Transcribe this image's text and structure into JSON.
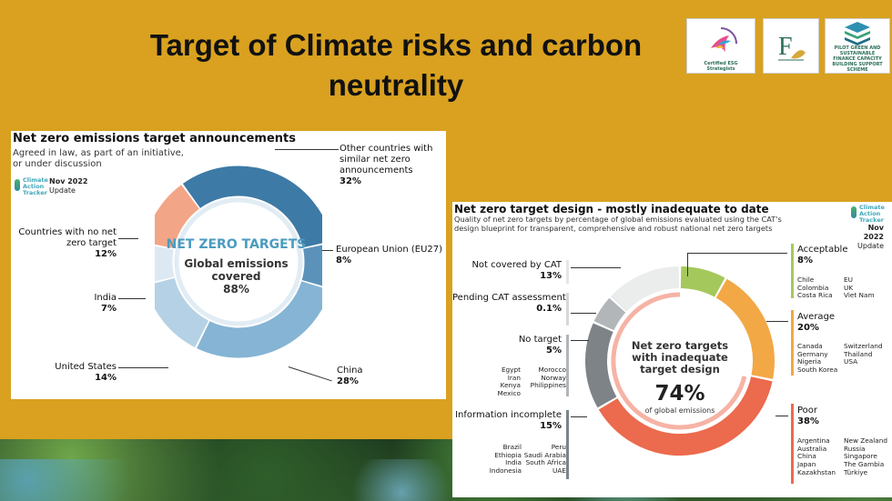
{
  "slide_title": "Target of Climate risks and carbon neutrality",
  "logos": [
    "Certified ESG Strategists",
    "F",
    "PILOT GREEN AND SUSTAINABLE FINANCE CAPACITY BUILDING SUPPORT SCHEME"
  ],
  "colors": {
    "background": "#d9a11f",
    "blue_dark": "#3d7aa6",
    "blue_mid": "#7fb1d3",
    "blue_light": "#c6dcea",
    "salmon": "#f3a587",
    "green": "#a5c85c",
    "orange": "#f2a844",
    "red": "#ec6a4d",
    "gray": "#8a8f93",
    "gray_light": "#e9eaea"
  },
  "panel1": {
    "title": "Net zero emissions target announcements",
    "subtitle": "Agreed in law, as part of an initiative, or under discussion",
    "badge_logo": "Climate Action Tracker",
    "badge_date": "Nov 2022",
    "badge_update": "Update",
    "center_title": "NET ZERO TARGETS",
    "center_sub": "Global emissions covered",
    "center_value": "88%",
    "segments": [
      {
        "label": "Other countries with similar net zero announcements",
        "value": "32%",
        "share": 32,
        "color": "#3d7aa6"
      },
      {
        "label": "European Union (EU27)",
        "value": "8%",
        "share": 8,
        "color": "#5b92ba"
      },
      {
        "label": "China",
        "value": "28%",
        "share": 28,
        "color": "#85b4d4"
      },
      {
        "label": "United States",
        "value": "14%",
        "share": 14,
        "color": "#b5d1e5"
      },
      {
        "label": "India",
        "value": "7%",
        "share": 7,
        "color": "#dce9f2"
      },
      {
        "label": "Countries with no net zero target",
        "value": "12%",
        "share": 12,
        "color": "#f3a587"
      }
    ]
  },
  "panel2": {
    "title": "Net zero target design - mostly inadequate to date",
    "subtitle": "Quality of net zero targets by percentage of global emissions evaluated using the CAT's design blueprint for transparent, comprehensive and robust national net zero targets",
    "badge_logo": "Climate Action Tracker",
    "badge_date": "Nov 2022",
    "badge_update": "Update",
    "center_title": "Net zero targets with inadequate target design",
    "center_value": "74%",
    "center_sub": "of global emissions",
    "segments": [
      {
        "label": "Acceptable",
        "value": "8%",
        "share": 8,
        "color": "#a5c85c"
      },
      {
        "label": "Average",
        "value": "20%",
        "share": 20,
        "color": "#f2a844"
      },
      {
        "label": "Poor",
        "value": "38%",
        "share": 38,
        "color": "#ec6a4d"
      },
      {
        "label": "Information incomplete",
        "value": "15%",
        "share": 15,
        "color": "#7d8387"
      },
      {
        "label": "No target",
        "value": "5%",
        "share": 5,
        "color": "#b2b6b9"
      },
      {
        "label": "Pending CAT assessment",
        "value": "0.1%",
        "share": 0.1,
        "color": "#cfd2d4"
      },
      {
        "label": "Not covered by CAT",
        "value": "13%",
        "share": 13,
        "color": "#ebecec"
      }
    ],
    "groups": {
      "acceptable": [
        "Chile",
        "EU",
        "Colombia",
        "UK",
        "Costa Rica",
        "Viet Nam"
      ],
      "average": [
        "Canada",
        "Switzerland",
        "Germany",
        "Thailand",
        "Nigeria",
        "USA",
        "South Korea"
      ],
      "poor": [
        "Argentina",
        "New Zealand",
        "Australia",
        "Russia",
        "China",
        "Singapore",
        "Japan",
        "The Gambia",
        "Kazakhstan",
        "Türkiye"
      ],
      "no_target": [
        "Egypt",
        "Morocco",
        "Iran",
        "Norway",
        "Kenya",
        "Philippines",
        "Mexico"
      ],
      "info_incomplete": [
        "Brazil",
        "Peru",
        "Ethiopia",
        "Saudi Arabia",
        "India",
        "South Africa",
        "Indonesia",
        "UAE"
      ]
    }
  }
}
